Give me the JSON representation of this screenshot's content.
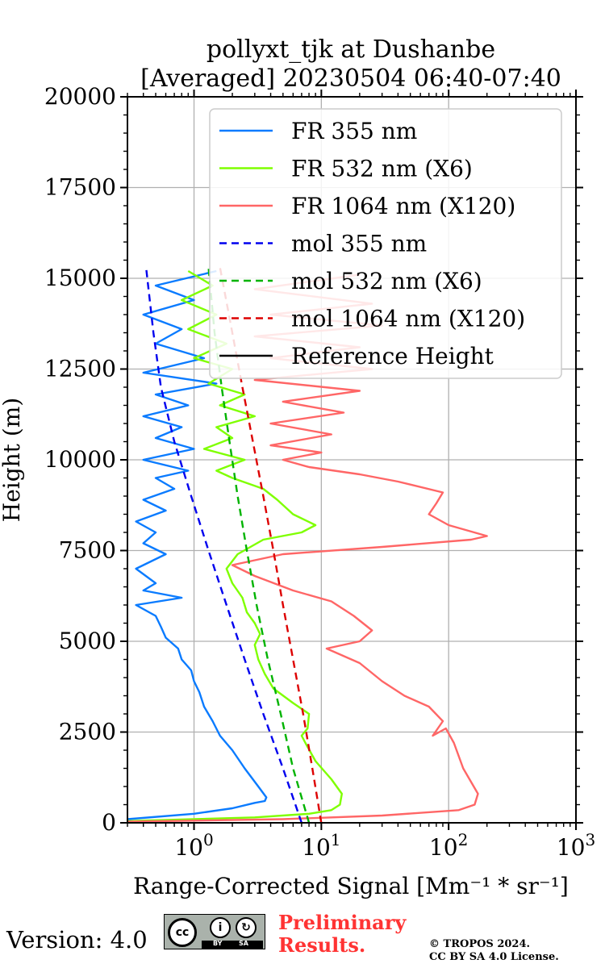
{
  "chart_data": {
    "type": "line",
    "title_line1": "pollyxt_tjk at Dushanbe",
    "title_line2": "[Averaged] 20230504 06:40-07:40",
    "xlabel": "Range-Corrected Signal [Mm⁻¹ * sr⁻¹]",
    "ylabel": "Height (m)",
    "xscale": "log",
    "xlim": [
      0.3,
      1000
    ],
    "ylim": [
      0,
      20000
    ],
    "grid": true,
    "legend_position": "top-right",
    "x_ticks": [
      {
        "value": 1,
        "base": "10",
        "exp": "0"
      },
      {
        "value": 10,
        "base": "10",
        "exp": "1"
      },
      {
        "value": 100,
        "base": "10",
        "exp": "2"
      },
      {
        "value": 1000,
        "base": "10",
        "exp": "3"
      }
    ],
    "y_ticks": [
      "0",
      "2500",
      "5000",
      "7500",
      "10000",
      "12500",
      "15000",
      "17500",
      "20000"
    ],
    "series": [
      {
        "name": "FR 355 nm",
        "color": "#0a7bff",
        "style": "solid",
        "points": [
          [
            0.3,
            100
          ],
          [
            1.0,
            250
          ],
          [
            2.0,
            400
          ],
          [
            3.0,
            550
          ],
          [
            3.6,
            600
          ],
          [
            3.7,
            700
          ],
          [
            3.2,
            1000
          ],
          [
            2.5,
            1500
          ],
          [
            2.0,
            2000
          ],
          [
            1.6,
            2400
          ],
          [
            1.4,
            2800
          ],
          [
            1.2,
            3200
          ],
          [
            1.1,
            3600
          ],
          [
            1.0,
            3900
          ],
          [
            0.95,
            4200
          ],
          [
            0.8,
            4500
          ],
          [
            0.75,
            4800
          ],
          [
            0.6,
            5100
          ],
          [
            0.55,
            5400
          ],
          [
            0.5,
            5700
          ],
          [
            0.35,
            6000
          ],
          [
            0.8,
            6200
          ],
          [
            0.4,
            6400
          ],
          [
            0.5,
            6600
          ],
          [
            0.35,
            7000
          ],
          [
            0.6,
            7400
          ],
          [
            0.4,
            7700
          ],
          [
            0.5,
            8000
          ],
          [
            0.35,
            8300
          ],
          [
            0.6,
            8600
          ],
          [
            0.4,
            8900
          ],
          [
            0.7,
            9200
          ],
          [
            0.5,
            9500
          ],
          [
            0.9,
            9700
          ],
          [
            0.4,
            10000
          ],
          [
            1.0,
            10300
          ],
          [
            0.5,
            10600
          ],
          [
            0.8,
            10900
          ],
          [
            0.4,
            11200
          ],
          [
            0.9,
            11500
          ],
          [
            0.5,
            11800
          ],
          [
            1.5,
            12100
          ],
          [
            0.4,
            12400
          ],
          [
            1.2,
            12800
          ],
          [
            0.5,
            13200
          ],
          [
            0.8,
            13600
          ],
          [
            0.4,
            14000
          ],
          [
            1.0,
            14400
          ],
          [
            0.5,
            14800
          ],
          [
            1.5,
            15200
          ]
        ]
      },
      {
        "name": "FR 532 nm (X6)",
        "color": "#7fff00",
        "style": "solid",
        "points": [
          [
            0.3,
            50
          ],
          [
            3.0,
            150
          ],
          [
            8.0,
            250
          ],
          [
            12.0,
            350
          ],
          [
            14.0,
            500
          ],
          [
            14.5,
            800
          ],
          [
            12.0,
            1200
          ],
          [
            9.0,
            1700
          ],
          [
            7.5,
            2200
          ],
          [
            7.0,
            2400
          ],
          [
            7.8,
            2600
          ],
          [
            8.0,
            3000
          ],
          [
            6.0,
            3300
          ],
          [
            4.2,
            3700
          ],
          [
            3.6,
            4100
          ],
          [
            3.2,
            4500
          ],
          [
            3.0,
            4900
          ],
          [
            3.3,
            5200
          ],
          [
            3.0,
            5500
          ],
          [
            2.6,
            5800
          ],
          [
            2.4,
            6200
          ],
          [
            2.0,
            6600
          ],
          [
            1.8,
            7000
          ],
          [
            2.2,
            7400
          ],
          [
            3.5,
            7800
          ],
          [
            7.0,
            8000
          ],
          [
            9.0,
            8200
          ],
          [
            6.0,
            8500
          ],
          [
            4.5,
            8900
          ],
          [
            3.5,
            9200
          ],
          [
            2.0,
            9500
          ],
          [
            1.5,
            9700
          ],
          [
            2.5,
            10000
          ],
          [
            1.2,
            10300
          ],
          [
            2.0,
            10600
          ],
          [
            1.5,
            10900
          ],
          [
            3.0,
            11200
          ],
          [
            1.6,
            11500
          ],
          [
            2.5,
            11800
          ],
          [
            1.3,
            12100
          ],
          [
            2.0,
            12500
          ],
          [
            1.0,
            12800
          ],
          [
            1.8,
            13200
          ],
          [
            0.9,
            13600
          ],
          [
            1.5,
            14000
          ],
          [
            0.8,
            14400
          ],
          [
            1.4,
            14800
          ],
          [
            0.9,
            15200
          ]
        ]
      },
      {
        "name": "FR 1064 nm (X120)",
        "color": "#ff6666",
        "style": "solid",
        "points": [
          [
            0.3,
            30
          ],
          [
            5.0,
            100
          ],
          [
            30.0,
            200
          ],
          [
            120.0,
            350
          ],
          [
            160.0,
            500
          ],
          [
            170.0,
            800
          ],
          [
            130.0,
            1500
          ],
          [
            110.0,
            2200
          ],
          [
            95.0,
            2600
          ],
          [
            75.0,
            2400
          ],
          [
            90.0,
            2800
          ],
          [
            70.0,
            3200
          ],
          [
            45.0,
            3500
          ],
          [
            30.0,
            3900
          ],
          [
            20.0,
            4400
          ],
          [
            11.0,
            4800
          ],
          [
            20.0,
            5000
          ],
          [
            25.0,
            5300
          ],
          [
            18.0,
            5700
          ],
          [
            12.0,
            6100
          ],
          [
            6.0,
            6400
          ],
          [
            3.0,
            6800
          ],
          [
            2.0,
            7100
          ],
          [
            5.0,
            7400
          ],
          [
            30.0,
            7600
          ],
          [
            150.0,
            7800
          ],
          [
            200.0,
            7900
          ],
          [
            100.0,
            8200
          ],
          [
            70.0,
            8500
          ],
          [
            80.0,
            8800
          ],
          [
            90.0,
            9100
          ],
          [
            40.0,
            9400
          ],
          [
            20.0,
            9600
          ],
          [
            8.0,
            9800
          ],
          [
            5.0,
            10000
          ],
          [
            10.0,
            10200
          ],
          [
            4.0,
            10400
          ],
          [
            12.0,
            10700
          ],
          [
            4.0,
            11000
          ],
          [
            15.0,
            11300
          ],
          [
            5.0,
            11600
          ],
          [
            20.0,
            11900
          ],
          [
            3.0,
            12200
          ],
          [
            25.0,
            12500
          ],
          [
            4.0,
            12800
          ],
          [
            20.0,
            13100
          ],
          [
            3.0,
            13400
          ],
          [
            30.0,
            13700
          ],
          [
            4.0,
            14000
          ],
          [
            25.0,
            14300
          ],
          [
            3.0,
            14700
          ],
          [
            20.0,
            15100
          ]
        ]
      },
      {
        "name": "mol 355 nm",
        "color": "#0000ee",
        "style": "dashed",
        "points": [
          [
            7.0,
            0
          ],
          [
            5.0,
            1500
          ],
          [
            3.5,
            3000
          ],
          [
            2.5,
            4500
          ],
          [
            1.8,
            6000
          ],
          [
            1.3,
            7500
          ],
          [
            0.95,
            9000
          ],
          [
            0.7,
            10500
          ],
          [
            0.55,
            12000
          ],
          [
            0.48,
            13500
          ],
          [
            0.42,
            15300
          ]
        ]
      },
      {
        "name": "mol 532 nm (X6)",
        "color": "#00b300",
        "style": "dashed",
        "points": [
          [
            8.0,
            0
          ],
          [
            6.0,
            1500
          ],
          [
            4.8,
            3000
          ],
          [
            3.8,
            4500
          ],
          [
            3.1,
            6000
          ],
          [
            2.6,
            7500
          ],
          [
            2.2,
            9000
          ],
          [
            1.9,
            10500
          ],
          [
            1.65,
            12000
          ],
          [
            1.45,
            13500
          ],
          [
            1.3,
            15300
          ]
        ]
      },
      {
        "name": "mol 1064 nm (X120)",
        "color": "#dd0000",
        "style": "dashed",
        "points": [
          [
            10.0,
            0
          ],
          [
            8.5,
            1500
          ],
          [
            7.2,
            3000
          ],
          [
            6.0,
            4500
          ],
          [
            5.0,
            6000
          ],
          [
            4.2,
            7500
          ],
          [
            3.5,
            9000
          ],
          [
            2.9,
            10500
          ],
          [
            2.4,
            12000
          ],
          [
            2.0,
            13500
          ],
          [
            1.6,
            15300
          ]
        ]
      },
      {
        "name": "Reference Height",
        "color": "#000000",
        "style": "solid",
        "points": []
      }
    ]
  },
  "footer": {
    "version": "Version: 4.0",
    "prelim_line1": "Preliminary",
    "prelim_line2": "Results.",
    "copyright_line1": "© TROPOS 2024.",
    "copyright_line2": "CC BY SA 4.0 License.",
    "cc_mark": "cc",
    "cc_by": "BY",
    "cc_sa": "SA"
  }
}
